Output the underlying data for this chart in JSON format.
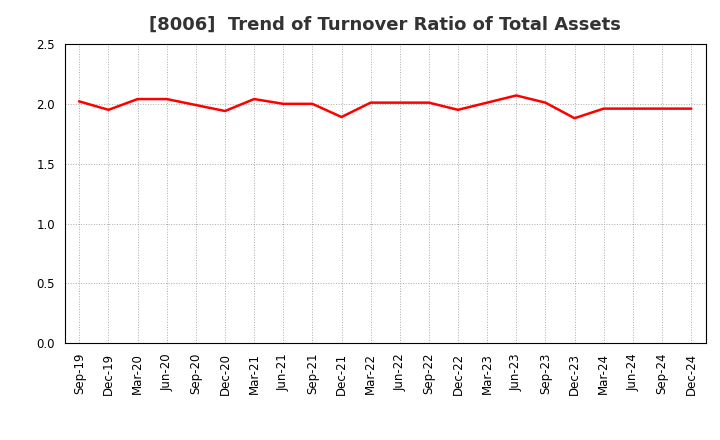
{
  "title": "[8006]  Trend of Turnover Ratio of Total Assets",
  "x_labels": [
    "Sep-19",
    "Dec-19",
    "Mar-20",
    "Jun-20",
    "Sep-20",
    "Dec-20",
    "Mar-21",
    "Jun-21",
    "Sep-21",
    "Dec-21",
    "Mar-22",
    "Jun-22",
    "Sep-22",
    "Dec-22",
    "Mar-23",
    "Jun-23",
    "Sep-23",
    "Dec-23",
    "Mar-24",
    "Jun-24",
    "Sep-24",
    "Dec-24"
  ],
  "y_values": [
    2.02,
    1.95,
    2.04,
    2.04,
    1.99,
    1.94,
    2.04,
    2.0,
    2.0,
    1.89,
    2.01,
    2.01,
    2.01,
    1.95,
    2.01,
    2.07,
    2.01,
    1.88,
    1.96,
    1.96,
    1.96,
    1.96
  ],
  "line_color": "#FF0000",
  "line_width": 1.8,
  "ylim": [
    0.0,
    2.5
  ],
  "yticks": [
    0.0,
    0.5,
    1.0,
    1.5,
    2.0,
    2.5
  ],
  "title_fontsize": 13,
  "axis_label_fontsize": 8.5,
  "grid_color": "#aaaaaa",
  "background_color": "#ffffff",
  "plot_bg_color": "#ffffff"
}
